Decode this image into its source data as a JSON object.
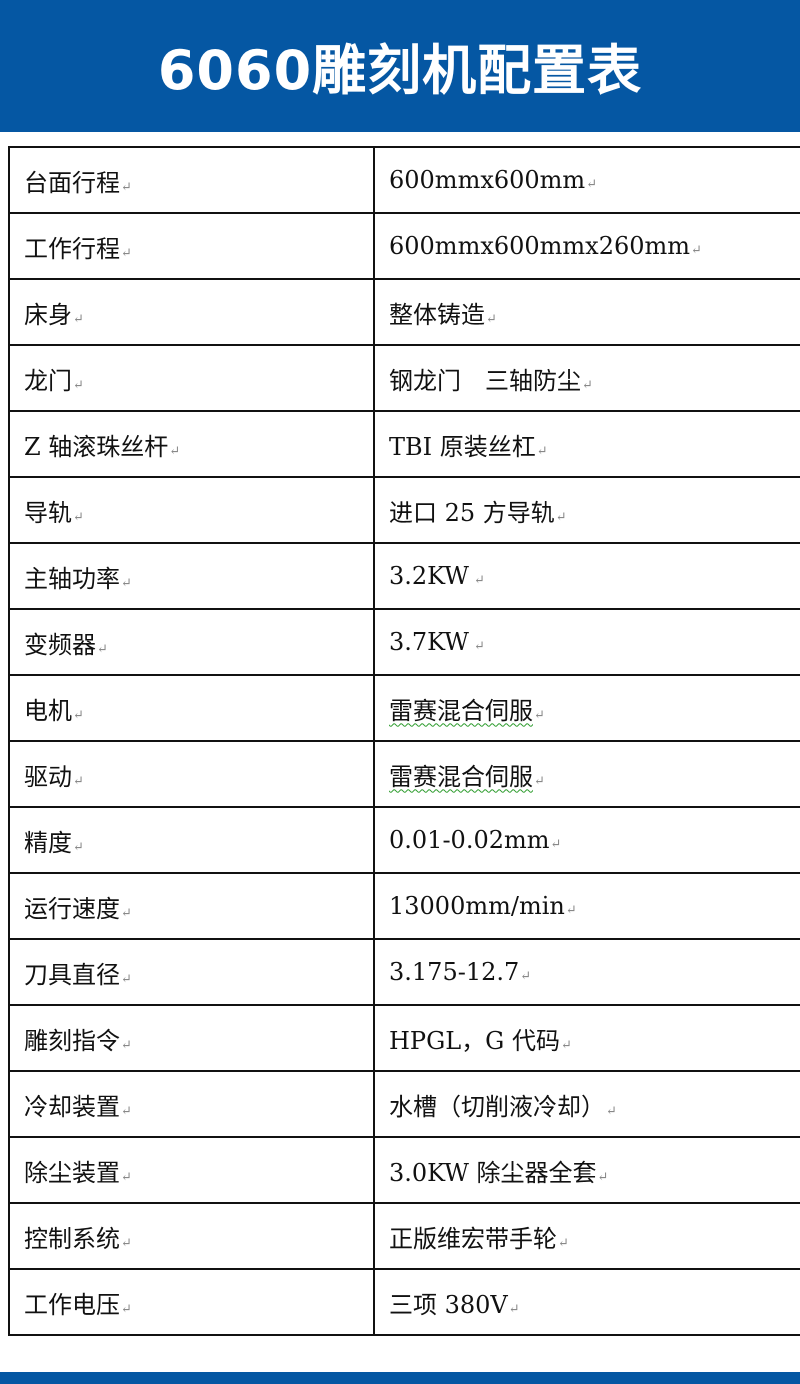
{
  "header": {
    "title": "6060雕刻机配置表",
    "color": "#0557a3"
  },
  "rows": [
    {
      "label": "台面行程",
      "value": "600mmx600mm"
    },
    {
      "label": "工作行程",
      "value": "600mmx600mmx260mm"
    },
    {
      "label": "床身",
      "value": "整体铸造"
    },
    {
      "label": "龙门",
      "value": "钢龙门　三轴防尘"
    },
    {
      "label": "Z 轴滚珠丝杆",
      "value": "TBI 原装丝杠"
    },
    {
      "label": "导轨",
      "value": "进口 25 方导轨"
    },
    {
      "label": "主轴功率",
      "value": "3.2KW"
    },
    {
      "label": "变频器",
      "value": "3.7KW"
    },
    {
      "label": "电机",
      "value": "雷赛混合伺服"
    },
    {
      "label": "驱动",
      "value": "雷赛混合伺服"
    },
    {
      "label": "精度",
      "value": "0.01-0.02mm"
    },
    {
      "label": "运行速度",
      "value": "13000mm/min"
    },
    {
      "label": "刀具直径",
      "value": "3.175-12.7"
    },
    {
      "label": "雕刻指令",
      "value": "HPGL，G 代码"
    },
    {
      "label": "冷却装置",
      "value": "水槽（切削液冷却）"
    },
    {
      "label": "除尘装置",
      "value": "3.0KW 除尘器全套"
    },
    {
      "label": "控制系统",
      "value": "正版维宏带手轮"
    },
    {
      "label": "工作电压",
      "value": "三项 380V"
    }
  ]
}
